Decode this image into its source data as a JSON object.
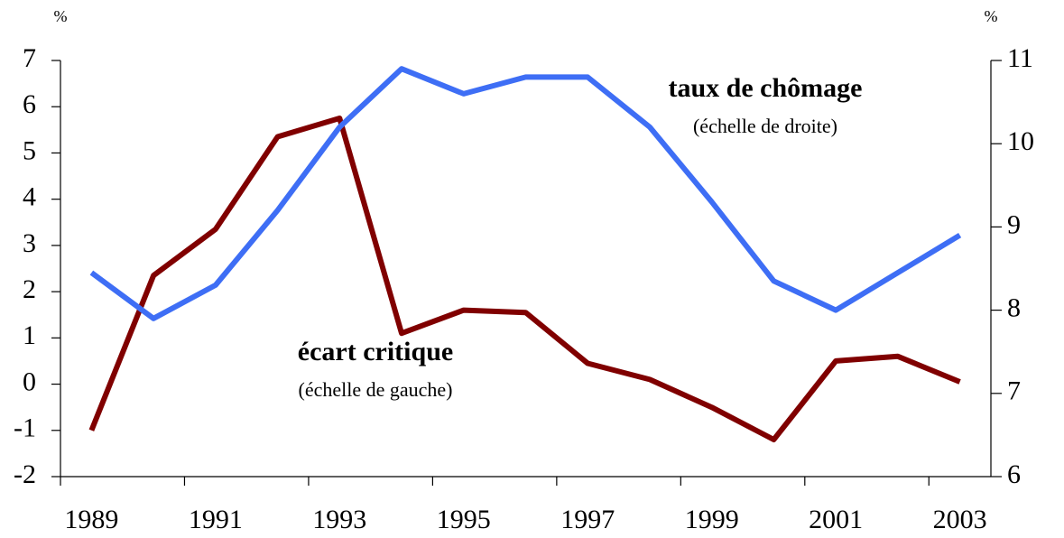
{
  "chart_data": {
    "type": "line",
    "categories": [
      "1989",
      null,
      "1991",
      null,
      "1993",
      null,
      "1995",
      null,
      "1997",
      null,
      "1999",
      null,
      "2001",
      null,
      "2003"
    ],
    "series": [
      {
        "name": "écart critique",
        "scale_label": "(échelle de gauche)",
        "color": "#800000",
        "axis": "y",
        "values": [
          -1.0,
          2.35,
          3.35,
          5.35,
          5.75,
          1.1,
          1.6,
          1.55,
          0.45,
          0.1,
          -0.5,
          -1.2,
          0.5,
          0.6,
          0.05
        ]
      },
      {
        "name": "taux de chômage",
        "scale_label": "(échelle de droite)",
        "color": "#3e6ef5",
        "axis": "y2",
        "values": [
          8.45,
          7.9,
          8.3,
          9.2,
          10.2,
          10.9,
          10.6,
          10.8,
          10.8,
          10.2,
          9.3,
          8.35,
          8.0,
          8.45,
          8.9
        ]
      }
    ],
    "y_unit": "%",
    "y2_unit": "%",
    "ylim": [
      -2,
      7
    ],
    "yticks": [
      -2,
      -1,
      0,
      1,
      2,
      3,
      4,
      5,
      6,
      7
    ],
    "y2lim": [
      6,
      11
    ],
    "y2ticks": [
      6,
      7,
      8,
      9,
      10,
      11
    ],
    "grid": false
  }
}
